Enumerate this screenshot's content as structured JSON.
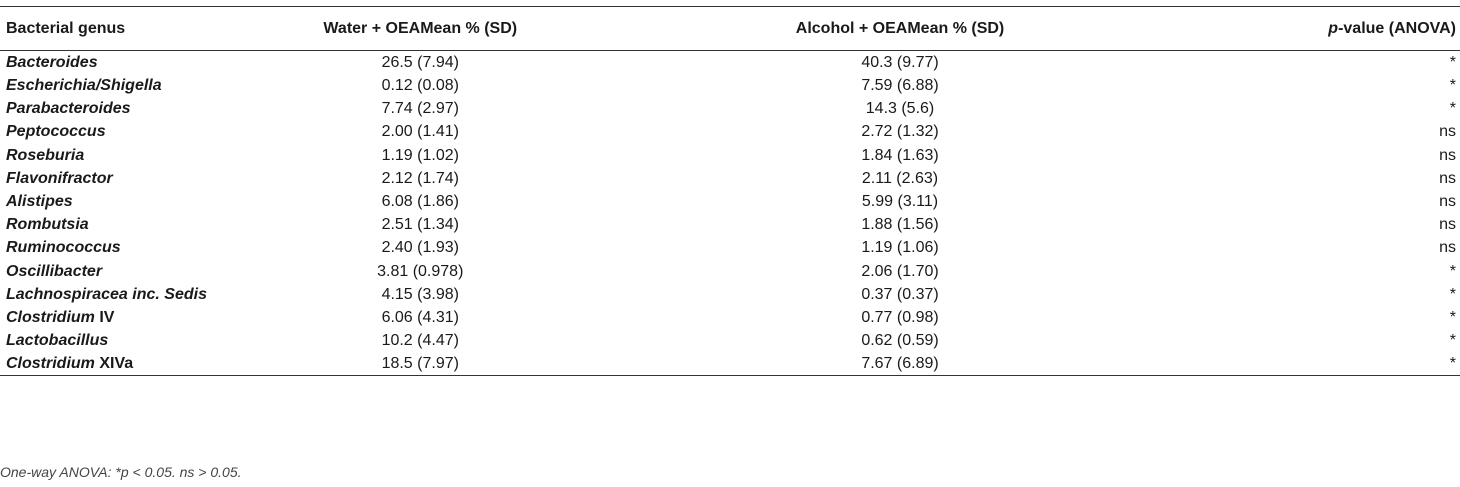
{
  "table": {
    "headers": {
      "genus": "Bacterial genus",
      "water": "Water + OEAMean % (SD)",
      "alcohol": "Alcohol + OEAMean % (SD)",
      "p_italic": "p",
      "p_rest": "-value (ANOVA)"
    },
    "rows": [
      {
        "genus_it": "Bacteroides",
        "genus_rest": "",
        "water": "26.5 (7.94)",
        "alcohol": "40.3 (9.77)",
        "p": "*"
      },
      {
        "genus_it": "Escherichia/Shigella",
        "genus_rest": "",
        "water": "0.12 (0.08)",
        "alcohol": "7.59 (6.88)",
        "p": "*"
      },
      {
        "genus_it": "Parabacteroides",
        "genus_rest": "",
        "water": "7.74 (2.97)",
        "alcohol": "14.3 (5.6)",
        "p": "*"
      },
      {
        "genus_it": "Peptococcus",
        "genus_rest": "",
        "water": "2.00 (1.41)",
        "alcohol": "2.72 (1.32)",
        "p": "ns"
      },
      {
        "genus_it": "Roseburia",
        "genus_rest": "",
        "water": "1.19 (1.02)",
        "alcohol": "1.84 (1.63)",
        "p": "ns"
      },
      {
        "genus_it": "Flavonifractor",
        "genus_rest": "",
        "water": "2.12 (1.74)",
        "alcohol": "2.11 (2.63)",
        "p": "ns"
      },
      {
        "genus_it": "Alistipes",
        "genus_rest": "",
        "water": "6.08 (1.86)",
        "alcohol": "5.99 (3.11)",
        "p": "ns"
      },
      {
        "genus_it": "Rombutsia",
        "genus_rest": "",
        "water": "2.51 (1.34)",
        "alcohol": "1.88 (1.56)",
        "p": "ns"
      },
      {
        "genus_it": "Ruminococcus",
        "genus_rest": "",
        "water": "2.40 (1.93)",
        "alcohol": "1.19 (1.06)",
        "p": "ns"
      },
      {
        "genus_it": "Oscillibacter",
        "genus_rest": "",
        "water": "3.81 (0.978)",
        "alcohol": "2.06 (1.70)",
        "p": "*"
      },
      {
        "genus_it": "Lachnospiracea inc. Sedis",
        "genus_rest": "",
        "water": "4.15 (3.98)",
        "alcohol": "0.37 (0.37)",
        "p": "*"
      },
      {
        "genus_it": "Clostridium",
        "genus_rest": " IV",
        "water": "6.06 (4.31)",
        "alcohol": "0.77 (0.98)",
        "p": "*"
      },
      {
        "genus_it": "Lactobacillus",
        "genus_rest": "",
        "water": "10.2 (4.47)",
        "alcohol": "0.62 (0.59)",
        "p": "*"
      },
      {
        "genus_it": "Clostridium",
        "genus_rest": " XIVa",
        "water": "18.5 (7.97)",
        "alcohol": "7.67 (6.89)",
        "p": "*"
      }
    ]
  },
  "footnote": "One-way ANOVA: *p < 0.05. ns > 0.05."
}
